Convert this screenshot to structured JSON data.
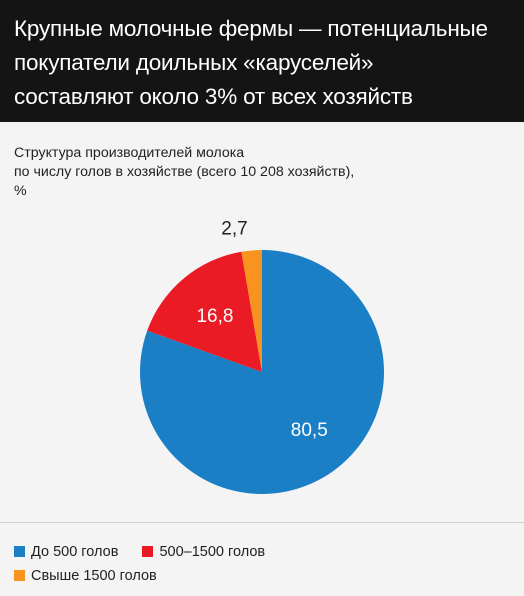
{
  "header": {
    "title_lines": [
      "Крупные молочные фермы — потенциальные",
      "покупатели доильных «каруселей»",
      "составляют около 3% от всех хозяйств"
    ]
  },
  "chart_data": {
    "type": "pie",
    "title": "Структура производителей молока по числу голов в хозяйстве (всего 10 208 хозяйств), %",
    "subtitle_lines": [
      "Структура производителей молока",
      "по числу голов в хозяйстве (всего 10 208 хозяйств),",
      "%"
    ],
    "unit": "%",
    "slices": [
      {
        "name": "До 500 голов",
        "value": 80.5,
        "label": "80,5",
        "color": "#1a7fc4"
      },
      {
        "name": "500–1500 голов",
        "value": 16.8,
        "label": "16,8",
        "color": "#ea1b24"
      },
      {
        "name": "Свыше 1500 голов",
        "value": 2.7,
        "label": "2,7",
        "color": "#f7931e"
      }
    ],
    "start": "12 o'clock",
    "direction": "clockwise"
  }
}
